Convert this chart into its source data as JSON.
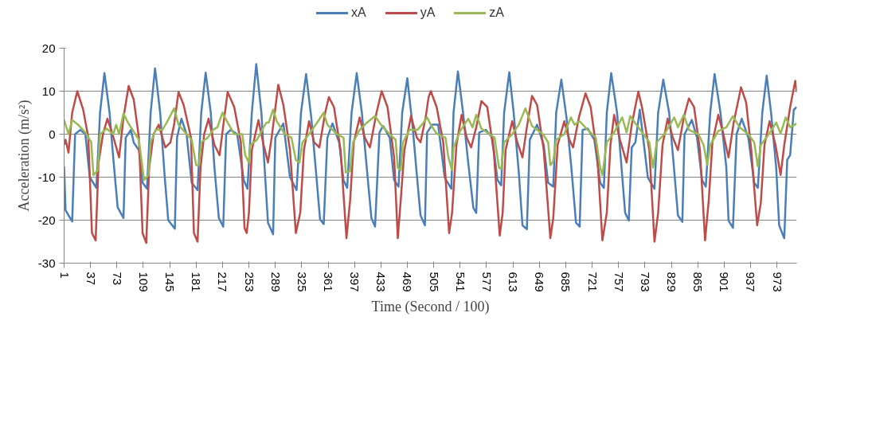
{
  "chart_data": {
    "type": "line",
    "xlabel": "Time (Second / 100)",
    "ylabel": "Acceleration (m/s²)",
    "xlim": [
      1,
      1000
    ],
    "xticks": [
      1,
      37,
      73,
      109,
      145,
      181,
      217,
      253,
      289,
      325,
      361,
      397,
      433,
      469,
      505,
      541,
      577,
      613,
      649,
      685,
      721,
      757,
      793,
      829,
      865,
      901,
      937,
      973
    ],
    "ylim": [
      -30,
      20
    ],
    "yticks": [
      -30,
      -20,
      -10,
      0,
      10,
      20
    ],
    "grid": "y",
    "legend": "top",
    "marker": "none",
    "line_style": "solid",
    "series": [
      {
        "name": "xA",
        "color": "#4a7ebb",
        "x": [
          1,
          3,
          12,
          16,
          23,
          30,
          36,
          45,
          50,
          56,
          63,
          68,
          74,
          82,
          85,
          92,
          96,
          103,
          108,
          114,
          119,
          125,
          132,
          138,
          143,
          152,
          155,
          161,
          168,
          175,
          183,
          188,
          194,
          201,
          206,
          212,
          218,
          222,
          228,
          237,
          246,
          251,
          257,
          263,
          270,
          275,
          279,
          286,
          289,
          300,
          309,
          318,
          324,
          331,
          338,
          344,
          350,
          355,
          360,
          367,
          376,
          382,
          387,
          393,
          400,
          407,
          414,
          420,
          425,
          431,
          436,
          445,
          451,
          457,
          462,
          469,
          476,
          482,
          487,
          493,
          496,
          503,
          511,
          520,
          529,
          532,
          538,
          545,
          552,
          559,
          563,
          567,
          576,
          585,
          592,
          597,
          601,
          608,
          614,
          621,
          626,
          632,
          636,
          646,
          655,
          661,
          668,
          672,
          679,
          686,
          693,
          699,
          704,
          708,
          715,
          724,
          732,
          737,
          741,
          747,
          755,
          760,
          766,
          771,
          775,
          780,
          786,
          797,
          806,
          811,
          818,
          826,
          832,
          838,
          844,
          847,
          857,
          864,
          871,
          876,
          882,
          888,
          896,
          904,
          907,
          913,
          918,
          925,
          934,
          942,
          947,
          953,
          959,
          965,
          972,
          976,
          983,
          987,
          991,
          996,
          1000
        ],
        "values": [
          -7.5,
          -17.7,
          -20.3,
          0,
          1,
          0,
          -10,
          -12.5,
          5,
          14.2,
          5,
          -5.5,
          -17,
          -19.5,
          -0.8,
          1,
          -2,
          -3.7,
          -11.3,
          -12.7,
          5,
          15.3,
          5,
          -9.5,
          -20,
          -22,
          -0.8,
          3.6,
          0,
          -11.3,
          -13,
          5,
          14.3,
          5,
          -7.8,
          -19.5,
          -21.5,
          0,
          1,
          0,
          -10.7,
          -12.7,
          5,
          16.3,
          5,
          -9.5,
          -20.6,
          -23.3,
          -0.8,
          2.5,
          -10,
          -13,
          5,
          14,
          3.9,
          -7.8,
          -19.8,
          -20.9,
          -0.8,
          2.5,
          -1.9,
          -10.7,
          -12.5,
          5,
          14.2,
          5,
          -8.4,
          -19.5,
          -21.5,
          0.4,
          1.9,
          -0.8,
          -10.7,
          -12.2,
          5,
          13,
          2.2,
          -9.5,
          -18.9,
          -21.2,
          0.4,
          2.2,
          2.2,
          -10.1,
          -12.7,
          5,
          14.6,
          5,
          -6.6,
          -17.1,
          -18.3,
          0.4,
          1,
          -0.8,
          -10.7,
          -11.9,
          5,
          14.4,
          5,
          -8.9,
          -21.2,
          -22.1,
          -1.3,
          2.2,
          -2.5,
          -11.3,
          -12.2,
          5,
          12.7,
          3.9,
          -8.4,
          -20.6,
          -21.5,
          1,
          1.3,
          -1.3,
          -11.3,
          -12.5,
          5,
          14.2,
          5,
          -5.4,
          -18.3,
          -20.1,
          -3.1,
          -1.9,
          5.7,
          -10.1,
          -12.7,
          5,
          12.7,
          5,
          -6.6,
          -18.9,
          -20.4,
          0,
          3.3,
          -0.8,
          -10.7,
          -12.2,
          5,
          14,
          5,
          -7.8,
          -20.1,
          -21.8,
          0,
          3.6,
          -0.8,
          -11.3,
          -12.5,
          5,
          13.6,
          5,
          -7.8,
          -21.2,
          -24.2,
          -6,
          -4.9,
          5.7,
          6.3
        ]
      },
      {
        "name": "yA",
        "color": "#be4b48",
        "x": [
          1,
          3,
          7,
          12,
          19,
          27,
          34,
          39,
          44,
          48,
          54,
          60,
          67,
          76,
          82,
          89,
          96,
          103,
          108,
          113,
          117,
          123,
          130,
          139,
          146,
          151,
          157,
          164,
          174,
          178,
          183,
          187,
          192,
          198,
          206,
          213,
          219,
          224,
          233,
          242,
          247,
          250,
          253,
          257,
          266,
          273,
          279,
          284,
          293,
          300,
          309,
          317,
          323,
          328,
          335,
          342,
          349,
          357,
          362,
          369,
          378,
          386,
          391,
          396,
          404,
          411,
          418,
          427,
          434,
          442,
          451,
          456,
          460,
          465,
          474,
          482,
          487,
          494,
          498,
          501,
          509,
          518,
          526,
          530,
          536,
          543,
          550,
          556,
          563,
          570,
          578,
          587,
          595,
          599,
          603,
          612,
          619,
          626,
          632,
          639,
          646,
          655,
          664,
          668,
          674,
          683,
          690,
          695,
          703,
          712,
          719,
          728,
          735,
          741,
          746,
          751,
          759,
          768,
          775,
          784,
          789,
          799,
          806,
          811,
          817,
          824,
          831,
          838,
          846,
          853,
          860,
          868,
          875,
          880,
          885,
          893,
          900,
          907,
          914,
          924,
          931,
          938,
          946,
          951,
          956,
          963,
          971,
          978,
          983,
          991,
          998,
          1000
        ],
        "values": [
          -2.5,
          -1.3,
          -4.3,
          5,
          10,
          5.7,
          -0.8,
          -23,
          -24.7,
          -6.6,
          0,
          3.6,
          0,
          -5.4,
          3.9,
          11.2,
          8,
          -0.8,
          -23,
          -25.3,
          -7.8,
          0,
          2.2,
          -3.1,
          -1.9,
          2.2,
          9.8,
          6.8,
          -0.8,
          -23,
          -25,
          -7.8,
          0,
          3.6,
          -2.5,
          -4.9,
          3.3,
          9.8,
          6.3,
          -1.9,
          -21.8,
          -23,
          -18.3,
          -3.7,
          3.3,
          -2.5,
          -6.6,
          -0.8,
          11.5,
          6.8,
          -3.7,
          -23,
          -18.3,
          -3.7,
          3,
          -1.9,
          -3.1,
          5,
          8.6,
          6.3,
          -3.7,
          -24.2,
          -15.4,
          -1.9,
          3.9,
          -0.8,
          -3.1,
          5,
          10,
          6.3,
          -5.4,
          -24.2,
          -15.4,
          -3.7,
          4.2,
          -0.8,
          -1.9,
          3.9,
          8.6,
          10,
          6.3,
          -1.9,
          -23,
          -18.3,
          -2.5,
          4.5,
          -0.8,
          -3.1,
          1.6,
          7.7,
          6.3,
          -4.3,
          -23.6,
          -18.3,
          -3.7,
          3,
          -1.9,
          -5.4,
          1.6,
          8.9,
          6.8,
          -3.7,
          -24.2,
          -19.5,
          -2.5,
          3,
          -1.3,
          -3.1,
          3.9,
          9.5,
          6.3,
          -4.9,
          -24.7,
          -18.3,
          -2.5,
          4.5,
          -1.3,
          -6.6,
          2.2,
          9.9,
          6.3,
          -3.7,
          -25,
          -18.3,
          -2.5,
          3.6,
          -0.8,
          -3.7,
          3.9,
          8.3,
          6.3,
          -3.7,
          -24.7,
          -15.4,
          -1.9,
          4.5,
          0,
          -5.4,
          2.7,
          10.9,
          7.4,
          -3.7,
          -21.2,
          -16,
          -2.5,
          3,
          -2.5,
          -9.5,
          -2.5,
          6.3,
          12.4,
          9.8
        ]
      },
      {
        "name": "zA",
        "color": "#98b954",
        "x": [
          1,
          7,
          12,
          20,
          30,
          38,
          41,
          47,
          50,
          59,
          68,
          72,
          76,
          82,
          88,
          103,
          110,
          116,
          119,
          126,
          135,
          141,
          151,
          157,
          168,
          175,
          181,
          185,
          188,
          197,
          204,
          210,
          217,
          224,
          233,
          244,
          248,
          253,
          255,
          264,
          273,
          277,
          280,
          286,
          291,
          302,
          311,
          317,
          322,
          326,
          335,
          346,
          355,
          360,
          373,
          382,
          385,
          391,
          395,
          404,
          414,
          425,
          433,
          445,
          453,
          456,
          460,
          463,
          472,
          483,
          491,
          496,
          501,
          509,
          521,
          525,
          530,
          532,
          541,
          552,
          558,
          563,
          570,
          588,
          594,
          597,
          601,
          612,
          621,
          630,
          639,
          654,
          661,
          664,
          668,
          672,
          683,
          692,
          697,
          704,
          715,
          726,
          732,
          735,
          741,
          746,
          751,
          762,
          768,
          773,
          780,
          791,
          799,
          804,
          809,
          820,
          833,
          838,
          846,
          853,
          866,
          873,
          878,
          882,
          893,
          904,
          913,
          922,
          934,
          942,
          947,
          951,
          962,
          972,
          978,
          985,
          991,
          1000
        ],
        "values": [
          3.3,
          0,
          3.3,
          2.2,
          0.4,
          -1.9,
          -9.5,
          -8.4,
          0,
          1.3,
          0,
          2.2,
          0,
          4.8,
          2.7,
          -1.3,
          -10.7,
          -9.5,
          -1.9,
          1,
          1,
          2.7,
          6,
          2.2,
          0,
          -1.3,
          -7.2,
          -7.2,
          -1.9,
          -0.8,
          1,
          1.6,
          5,
          2.7,
          0,
          0,
          -4.9,
          -6.6,
          -2.5,
          -1.3,
          1.6,
          2.7,
          2.7,
          5.7,
          3,
          0,
          -0.8,
          -6,
          -6.6,
          -1.9,
          0,
          2.7,
          5,
          2.2,
          0,
          -0.8,
          -8.9,
          -8.6,
          -1.9,
          1,
          2.7,
          4.2,
          2.2,
          0,
          -1.3,
          -7.8,
          -8.4,
          -1.9,
          1,
          1,
          2.7,
          3.9,
          2.2,
          0.1,
          -0.8,
          -5.4,
          -8.4,
          -3.1,
          0.7,
          3.6,
          1.6,
          4.5,
          1.3,
          -0.8,
          -7.8,
          -8.1,
          -1.9,
          0,
          2.2,
          6,
          1.9,
          0,
          -1.9,
          -7.2,
          -6.3,
          -1.3,
          0,
          3.9,
          2.2,
          3,
          1,
          -0.8,
          -7.8,
          -9.5,
          -1.9,
          -0.8,
          0.4,
          3.9,
          0.4,
          4.2,
          2.5,
          0,
          -1.9,
          -7.8,
          -1.9,
          0.1,
          3.9,
          1.6,
          4.5,
          1,
          0,
          -2.5,
          -7.2,
          -2.5,
          0.7,
          1.6,
          4.2,
          1.6,
          0,
          -1.9,
          -7.5,
          -2.5,
          0,
          2.7,
          0.1,
          3.9,
          1.6,
          2.5
        ]
      }
    ]
  }
}
